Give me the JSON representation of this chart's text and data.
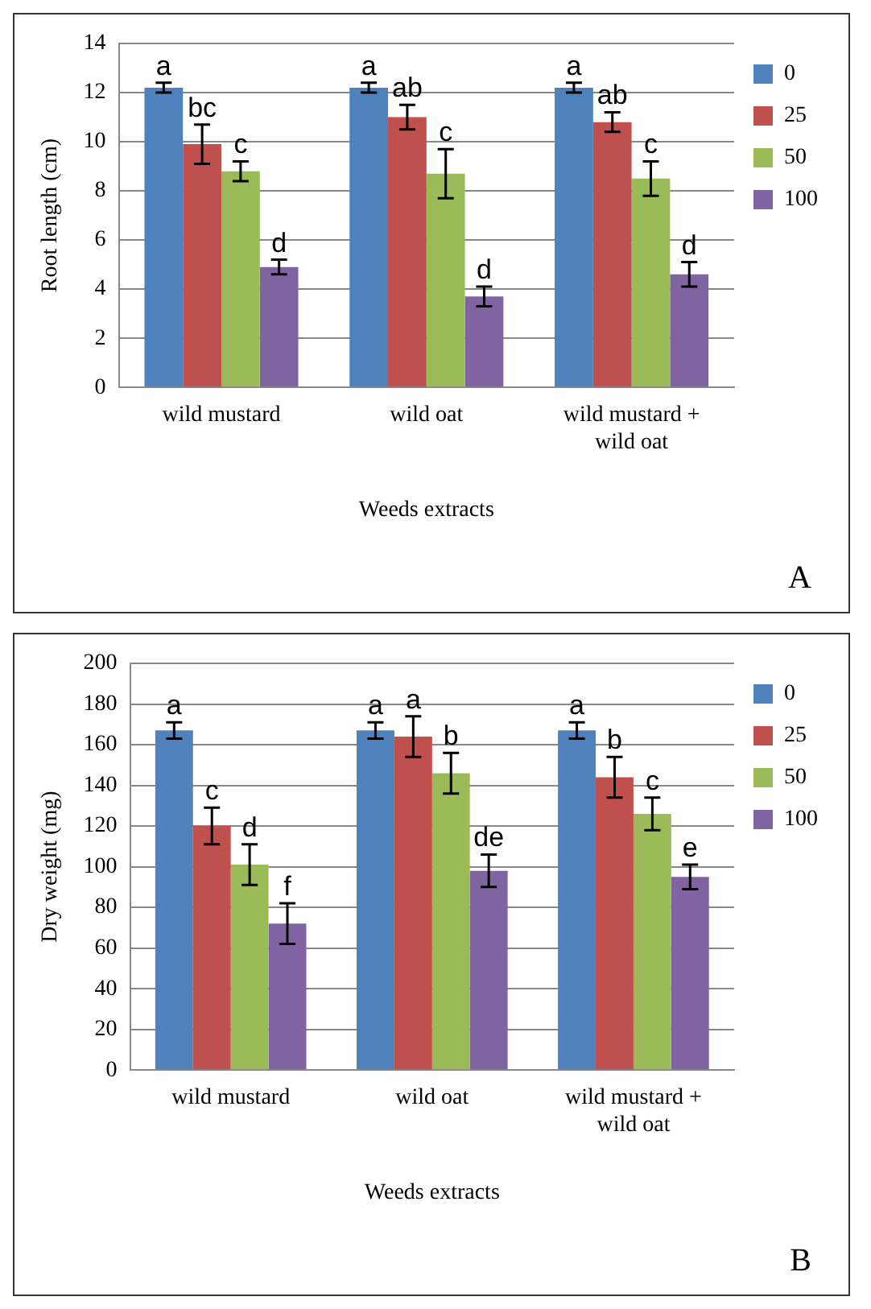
{
  "chart_data": [
    {
      "type": "bar",
      "xlabel": "Weeds extracts",
      "ylabel": "Root length (cm)",
      "categories": [
        "wild mustard",
        "wild oat",
        "wild mustard + wild oat"
      ],
      "series": [
        {
          "name": "0",
          "color": "#4f81bd",
          "values": [
            12.2,
            12.2,
            12.2
          ],
          "errors": [
            0.2,
            0.2,
            0.2
          ]
        },
        {
          "name": "25",
          "color": "#c0504d",
          "values": [
            9.9,
            11.0,
            10.8
          ],
          "errors": [
            0.8,
            0.5,
            0.4
          ]
        },
        {
          "name": "50",
          "color": "#9bbb59",
          "values": [
            8.8,
            8.7,
            8.5
          ],
          "errors": [
            0.4,
            1.0,
            0.7
          ]
        },
        {
          "name": "100",
          "color": "#8064a2",
          "values": [
            4.9,
            3.7,
            4.6
          ],
          "errors": [
            0.3,
            0.4,
            0.5
          ]
        }
      ],
      "ylim": [
        0,
        14
      ],
      "yticks": [
        0,
        2,
        4,
        6,
        8,
        10,
        12,
        14
      ],
      "grid": "y",
      "legend": "right",
      "annotations": [
        "a",
        "bc",
        "c",
        "d",
        "a",
        "ab",
        "c",
        "d",
        "a",
        "ab",
        "c",
        "d",
        "A"
      ]
    },
    {
      "type": "bar",
      "xlabel": "Weeds extracts",
      "ylabel": "Dry weight (mg)",
      "categories": [
        "wild mustard",
        "wild oat",
        "wild mustard + wild oat"
      ],
      "series": [
        {
          "name": "0",
          "color": "#4f81bd",
          "values": [
            167,
            167,
            167
          ],
          "errors": [
            4,
            4,
            4
          ]
        },
        {
          "name": "25",
          "color": "#c0504d",
          "values": [
            120,
            164,
            144
          ],
          "errors": [
            9,
            10,
            10
          ]
        },
        {
          "name": "50",
          "color": "#9bbb59",
          "values": [
            101,
            146,
            126
          ],
          "errors": [
            10,
            10,
            8
          ]
        },
        {
          "name": "100",
          "color": "#8064a2",
          "values": [
            72,
            98,
            95
          ],
          "errors": [
            10,
            8,
            6
          ]
        }
      ],
      "ylim": [
        0,
        200
      ],
      "yticks": [
        0,
        20,
        40,
        60,
        80,
        100,
        120,
        140,
        160,
        180,
        200
      ],
      "grid": "y",
      "legend": "right",
      "annotations": [
        "a",
        "c",
        "d",
        "f",
        "a",
        "a",
        "b",
        "de",
        "a",
        "b",
        "c",
        "e",
        "B"
      ]
    }
  ]
}
